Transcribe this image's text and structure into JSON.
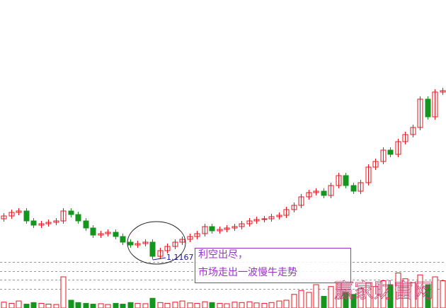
{
  "chart_data": {
    "type": "candlestick",
    "ylim": [
      1.05,
      1.85
    ],
    "volume_ylim": [
      0,
      100
    ],
    "up_color": "#e8141e",
    "down_color": "#14961e",
    "open": [
      1.232,
      1.24,
      1.25,
      1.254,
      1.226,
      1.214,
      1.218,
      1.222,
      1.226,
      1.254,
      1.244,
      1.226,
      1.206,
      1.186,
      1.19,
      1.194,
      1.182,
      1.166,
      1.158,
      1.162,
      1.166,
      1.126,
      1.142,
      1.154,
      1.166,
      1.174,
      1.182,
      1.19,
      1.21,
      1.198,
      1.202,
      1.206,
      1.21,
      1.218,
      1.226,
      1.23,
      1.232,
      1.238,
      1.242,
      1.258,
      1.27,
      1.294,
      1.306,
      1.31,
      1.298,
      1.326,
      1.354,
      1.326,
      1.31,
      1.334,
      1.378,
      1.394,
      1.426,
      1.414,
      1.45,
      1.47,
      1.49,
      1.57,
      1.52,
      1.59
    ],
    "high": [
      1.248,
      1.258,
      1.262,
      1.262,
      1.234,
      1.226,
      1.23,
      1.234,
      1.262,
      1.262,
      1.252,
      1.234,
      1.214,
      1.198,
      1.202,
      1.202,
      1.19,
      1.174,
      1.17,
      1.174,
      1.174,
      1.15,
      1.162,
      1.174,
      1.182,
      1.19,
      1.198,
      1.218,
      1.218,
      1.21,
      1.214,
      1.218,
      1.226,
      1.234,
      1.238,
      1.24,
      1.246,
      1.25,
      1.266,
      1.278,
      1.302,
      1.314,
      1.318,
      1.318,
      1.334,
      1.362,
      1.362,
      1.334,
      1.342,
      1.386,
      1.402,
      1.434,
      1.434,
      1.458,
      1.478,
      1.498,
      1.578,
      1.578,
      1.598,
      1.602
    ],
    "low": [
      1.224,
      1.232,
      1.242,
      1.218,
      1.206,
      1.206,
      1.21,
      1.214,
      1.218,
      1.236,
      1.218,
      1.198,
      1.178,
      1.178,
      1.182,
      1.174,
      1.158,
      1.15,
      1.15,
      1.154,
      1.1167,
      1.118,
      1.134,
      1.146,
      1.158,
      1.166,
      1.174,
      1.182,
      1.19,
      1.19,
      1.194,
      1.198,
      1.202,
      1.21,
      1.218,
      1.222,
      1.224,
      1.23,
      1.234,
      1.25,
      1.262,
      1.286,
      1.298,
      1.29,
      1.29,
      1.318,
      1.318,
      1.302,
      1.302,
      1.326,
      1.37,
      1.386,
      1.406,
      1.406,
      1.442,
      1.462,
      1.482,
      1.512,
      1.512,
      1.582
    ],
    "close": [
      1.24,
      1.25,
      1.254,
      1.226,
      1.214,
      1.218,
      1.222,
      1.226,
      1.254,
      1.244,
      1.226,
      1.206,
      1.186,
      1.19,
      1.194,
      1.182,
      1.166,
      1.158,
      1.162,
      1.166,
      1.126,
      1.142,
      1.154,
      1.166,
      1.174,
      1.182,
      1.19,
      1.21,
      1.198,
      1.202,
      1.206,
      1.21,
      1.218,
      1.226,
      1.23,
      1.232,
      1.238,
      1.242,
      1.258,
      1.27,
      1.294,
      1.306,
      1.31,
      1.298,
      1.326,
      1.354,
      1.326,
      1.31,
      1.334,
      1.378,
      1.394,
      1.426,
      1.414,
      1.45,
      1.47,
      1.49,
      1.57,
      1.52,
      1.59,
      1.594
    ],
    "volume": [
      15,
      12,
      18,
      10,
      14,
      12,
      10,
      9,
      80,
      20,
      14,
      12,
      10,
      11,
      9,
      12,
      10,
      14,
      12,
      11,
      25,
      14,
      12,
      15,
      18,
      13,
      12,
      16,
      14,
      12,
      11,
      15,
      14,
      16,
      13,
      12,
      14,
      18,
      20,
      35,
      45,
      40,
      60,
      30,
      55,
      70,
      40,
      35,
      50,
      65,
      55,
      70,
      60,
      90,
      75,
      65,
      85,
      60,
      80,
      70
    ],
    "annotation": [
      "利空出尽，",
      "市场走出一波慢牛走势"
    ],
    "watermark": "赢家财富网"
  }
}
